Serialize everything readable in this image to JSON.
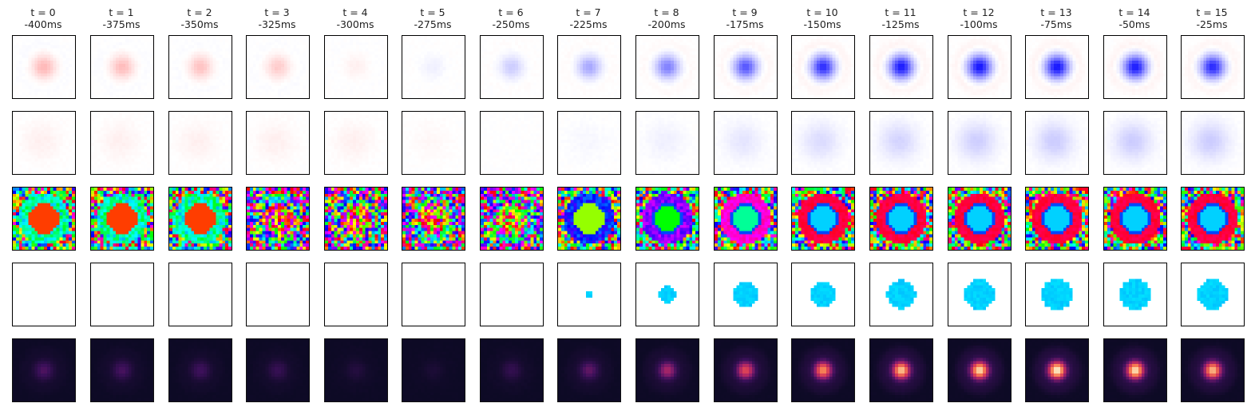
{
  "frames": [
    {
      "label": "t = 0",
      "time": "-400ms"
    },
    {
      "label": "t = 1",
      "time": "-375ms"
    },
    {
      "label": "t = 2",
      "time": "-350ms"
    },
    {
      "label": "t = 3",
      "time": "-325ms"
    },
    {
      "label": "t = 4",
      "time": "-300ms"
    },
    {
      "label": "t = 5",
      "time": "-275ms"
    },
    {
      "label": "t = 6",
      "time": "-250ms"
    },
    {
      "label": "t = 7",
      "time": "-225ms"
    },
    {
      "label": "t = 8",
      "time": "-200ms"
    },
    {
      "label": "t = 9",
      "time": "-175ms"
    },
    {
      "label": "t = 10",
      "time": "-150ms"
    },
    {
      "label": "t = 11",
      "time": "-125ms"
    },
    {
      "label": "t = 12",
      "time": "-100ms"
    },
    {
      "label": "t = 13",
      "time": "-75ms"
    },
    {
      "label": "t = 14",
      "time": "-50ms"
    },
    {
      "label": "t = 15",
      "time": "-25ms"
    }
  ],
  "rows": [
    {
      "kind": "bwr-center"
    },
    {
      "kind": "bwr-diffuse"
    },
    {
      "kind": "hsv-phase"
    },
    {
      "kind": "hsv-masked"
    },
    {
      "kind": "magnitude"
    }
  ],
  "colors": {
    "positive": "#ff0000",
    "negative": "#0000ff",
    "cyan": "#00e5ff",
    "background_dark": "#0d0a25"
  },
  "center_amplitude": [
    0.28,
    0.26,
    0.24,
    0.2,
    0.06,
    -0.06,
    -0.2,
    -0.34,
    -0.5,
    -0.66,
    -0.82,
    -0.9,
    -0.92,
    -0.92,
    -0.9,
    -0.84
  ],
  "diffuse_amplitude": [
    0.06,
    0.06,
    0.06,
    0.06,
    0.06,
    0.03,
    0.0,
    -0.03,
    -0.06,
    -0.1,
    -0.14,
    -0.17,
    -0.19,
    -0.2,
    -0.2,
    -0.2
  ],
  "magnitude": [
    0.3,
    0.28,
    0.26,
    0.22,
    0.12,
    0.08,
    0.2,
    0.35,
    0.52,
    0.68,
    0.82,
    0.92,
    0.96,
    1.0,
    0.97,
    0.9
  ],
  "mask_radius": [
    0,
    0,
    0,
    0,
    0,
    0,
    0,
    0.6,
    1.4,
    1.9,
    2.1,
    2.3,
    2.4,
    2.5,
    2.5,
    2.4
  ]
}
